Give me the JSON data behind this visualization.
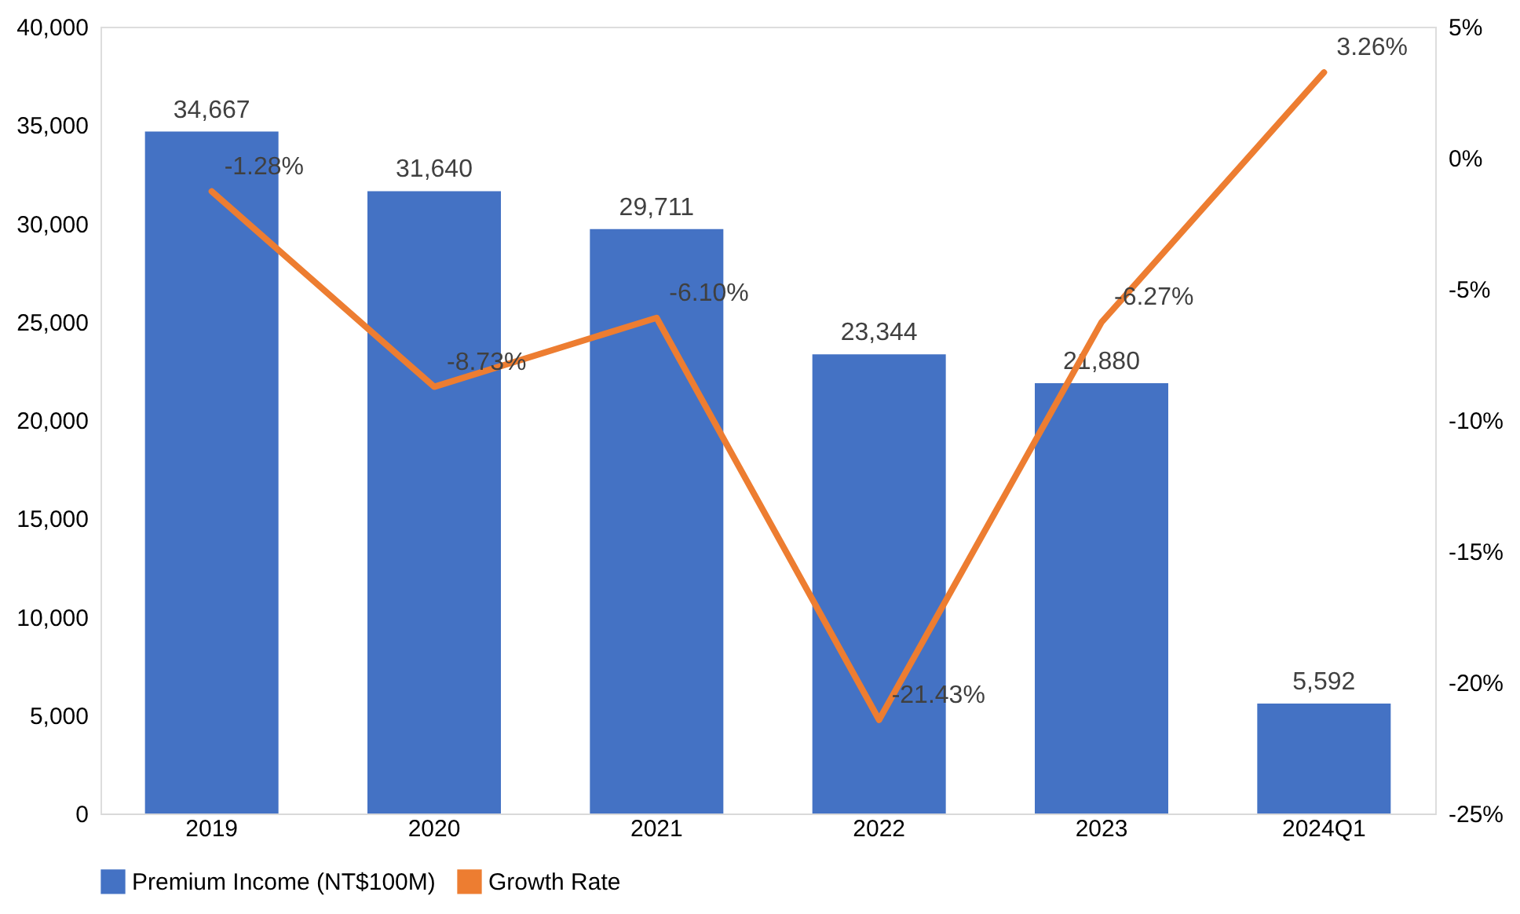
{
  "chart_data": {
    "type": "bar",
    "categories": [
      "2019",
      "2020",
      "2021",
      "2022",
      "2023",
      "2024Q1"
    ],
    "series": [
      {
        "name": "Premium Income (NT$100M)",
        "color": "#4472c4",
        "values": [
          34667,
          31640,
          29711,
          23344,
          21880,
          5592
        ],
        "value_labels": [
          "34,667",
          "31,640",
          "29,711",
          "23,344",
          "21,880",
          "5,592"
        ]
      },
      {
        "name": "Growth Rate",
        "type": "line",
        "axis": "y2",
        "color": "#ed7d31",
        "values": [
          -1.28,
          -8.73,
          -6.1,
          -21.43,
          -6.27,
          3.26
        ],
        "value_labels": [
          "-1.28%",
          "-8.73%",
          "-6.10%",
          "-21.43%",
          "-6.27%",
          "3.26%"
        ]
      }
    ],
    "ylim": [
      0,
      40000
    ],
    "yticks": [
      {
        "value": 0,
        "label": "0"
      },
      {
        "value": 5000,
        "label": "5,000"
      },
      {
        "value": 10000,
        "label": "10,000"
      },
      {
        "value": 15000,
        "label": "15,000"
      },
      {
        "value": 20000,
        "label": "20,000"
      },
      {
        "value": 25000,
        "label": "25,000"
      },
      {
        "value": 30000,
        "label": "30,000"
      },
      {
        "value": 35000,
        "label": "35,000"
      },
      {
        "value": 40000,
        "label": "40,000"
      }
    ],
    "y2lim": [
      -25,
      5
    ],
    "y2ticks": [
      {
        "value": -25,
        "label": "-25%"
      },
      {
        "value": -20,
        "label": "-20%"
      },
      {
        "value": -15,
        "label": "-15%"
      },
      {
        "value": -10,
        "label": "-10%"
      },
      {
        "value": -5,
        "label": "-5%"
      },
      {
        "value": 0,
        "label": "0%"
      },
      {
        "value": 5,
        "label": "5%"
      }
    ],
    "grid": false,
    "legend": "bottom",
    "line_style": "solid",
    "marker": "none"
  }
}
